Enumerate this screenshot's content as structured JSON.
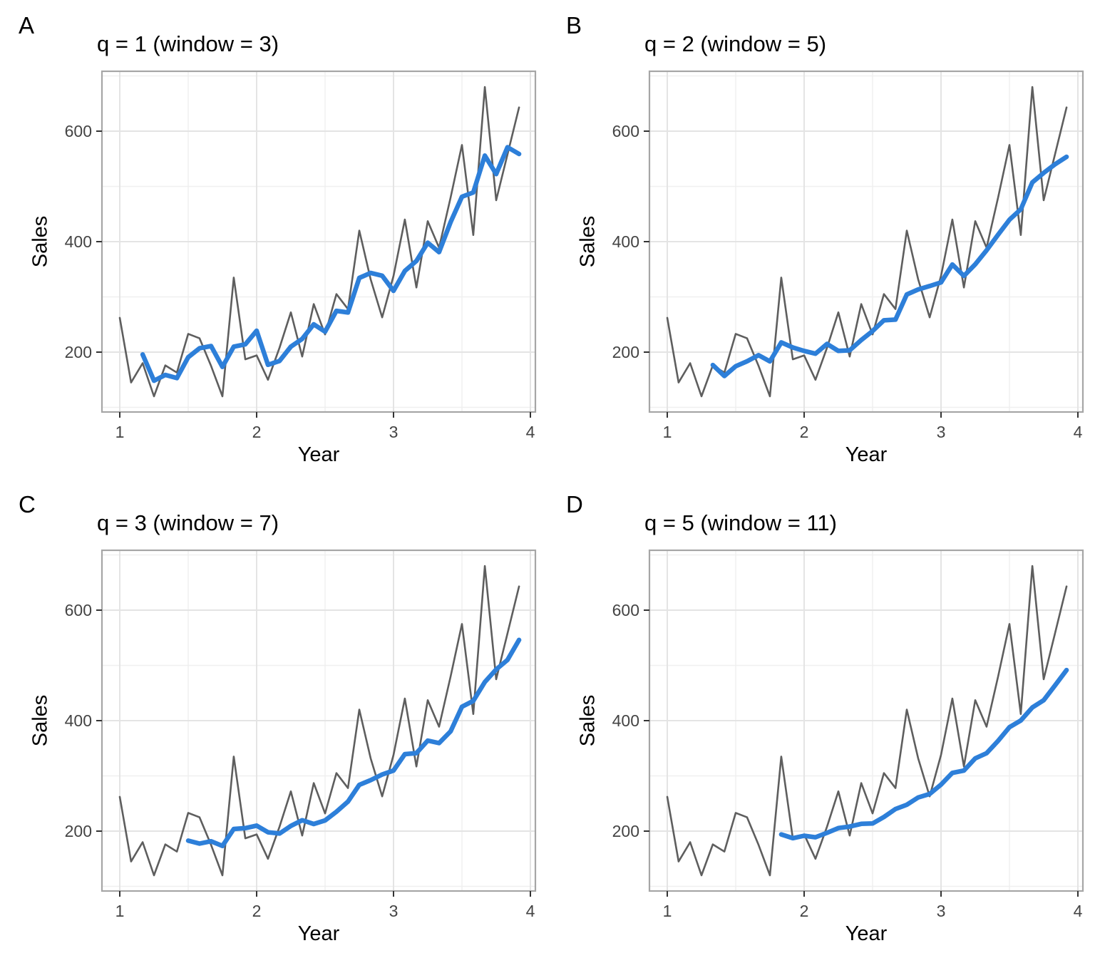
{
  "figure": {
    "background": "#ffffff",
    "raw_series_color": "#5e5e5e",
    "ma_series_color": "#2d7fd9",
    "grid_major_color": "#e4e4e4",
    "grid_minor_color": "#f0f0f0",
    "panel_border_color": "#a6a6a6",
    "tick_label_color": "#444444"
  },
  "chart_data": [
    {
      "type": "line",
      "panel_label": "A",
      "title": "q = 1 (window = 3)",
      "q": 1,
      "window": 3,
      "xlabel": "Year",
      "ylabel": "Sales",
      "x_ticks": [
        1,
        2,
        3,
        4
      ],
      "x_minor_ticks": [
        1.5,
        2.5,
        3.5
      ],
      "y_ticks": [
        200,
        400,
        600
      ],
      "y_minor_ticks": [
        100,
        300,
        500,
        700
      ],
      "xlim": [
        0.87,
        4.03
      ],
      "ylim": [
        92,
        707
      ],
      "grid": true,
      "legend": "none",
      "series": [
        {
          "name": "sales",
          "color": "#5e5e5e",
          "width": 2.6,
          "x": [
            1,
            1.083,
            1.167,
            1.25,
            1.333,
            1.417,
            1.5,
            1.583,
            1.667,
            1.75,
            1.833,
            1.917,
            2,
            2.083,
            2.167,
            2.25,
            2.333,
            2.417,
            2.5,
            2.583,
            2.667,
            2.75,
            2.833,
            2.917,
            3,
            3.083,
            3.167,
            3.25,
            3.333,
            3.417,
            3.5,
            3.583,
            3.667,
            3.75,
            3.833,
            3.917
          ],
          "values": [
            262,
            145,
            180,
            120,
            176,
            163,
            233,
            225,
            175,
            120,
            335,
            187,
            194,
            150,
            208,
            272,
            192,
            287,
            232,
            305,
            278,
            420,
            332,
            263,
            338,
            440,
            317,
            437,
            389,
            480,
            575,
            412,
            680,
            475,
            558,
            643
          ]
        },
        {
          "name": "moving_average_window_3",
          "color": "#2d7fd9",
          "width": 6.5,
          "x": [
            1.167,
            1.25,
            1.333,
            1.417,
            1.5,
            1.583,
            1.667,
            1.75,
            1.833,
            1.917,
            2,
            2.083,
            2.167,
            2.25,
            2.333,
            2.417,
            2.5,
            2.583,
            2.667,
            2.75,
            2.833,
            2.917,
            3,
            3.083,
            3.167,
            3.25,
            3.333,
            3.417,
            3.5,
            3.583,
            3.667,
            3.75,
            3.833,
            3.917
          ],
          "values": [
            195.7,
            148.3,
            158.7,
            153,
            190.7,
            207,
            211,
            173.3,
            210,
            214,
            238.7,
            177,
            184,
            210,
            224,
            250.3,
            237,
            274.7,
            271.7,
            334.3,
            343.3,
            338.3,
            311,
            347,
            365,
            398,
            381,
            435.3,
            481.3,
            489,
            555.7,
            522.3,
            571,
            558.7
          ]
        }
      ]
    },
    {
      "type": "line",
      "panel_label": "B",
      "title": "q = 2 (window = 5)",
      "q": 2,
      "window": 5,
      "xlabel": "Year",
      "ylabel": "Sales",
      "x_ticks": [
        1,
        2,
        3,
        4
      ],
      "x_minor_ticks": [
        1.5,
        2.5,
        3.5
      ],
      "y_ticks": [
        200,
        400,
        600
      ],
      "y_minor_ticks": [
        100,
        300,
        500,
        700
      ],
      "xlim": [
        0.87,
        4.03
      ],
      "ylim": [
        92,
        707
      ],
      "grid": true,
      "legend": "none",
      "series": [
        {
          "name": "sales",
          "color": "#5e5e5e",
          "width": 2.6,
          "x": [
            1,
            1.083,
            1.167,
            1.25,
            1.333,
            1.417,
            1.5,
            1.583,
            1.667,
            1.75,
            1.833,
            1.917,
            2,
            2.083,
            2.167,
            2.25,
            2.333,
            2.417,
            2.5,
            2.583,
            2.667,
            2.75,
            2.833,
            2.917,
            3,
            3.083,
            3.167,
            3.25,
            3.333,
            3.417,
            3.5,
            3.583,
            3.667,
            3.75,
            3.833,
            3.917
          ],
          "values": [
            262,
            145,
            180,
            120,
            176,
            163,
            233,
            225,
            175,
            120,
            335,
            187,
            194,
            150,
            208,
            272,
            192,
            287,
            232,
            305,
            278,
            420,
            332,
            263,
            338,
            440,
            317,
            437,
            389,
            480,
            575,
            412,
            680,
            475,
            558,
            643
          ]
        },
        {
          "name": "moving_average_window_5",
          "color": "#2d7fd9",
          "width": 6.5,
          "x": [
            1.333,
            1.417,
            1.5,
            1.583,
            1.667,
            1.75,
            1.833,
            1.917,
            2,
            2.083,
            2.167,
            2.25,
            2.333,
            2.417,
            2.5,
            2.583,
            2.667,
            2.75,
            2.833,
            2.917,
            3,
            3.083,
            3.167,
            3.25,
            3.333,
            3.417,
            3.5,
            3.583,
            3.667,
            3.75,
            3.833,
            3.917
          ],
          "values": [
            176.6,
            156.8,
            174.4,
            183.4,
            194.4,
            183.2,
            217.6,
            208.4,
            202.2,
            197.2,
            214.8,
            202.2,
            203.2,
            221.8,
            238.2,
            257.6,
            258.8,
            304.4,
            313.4,
            319.6,
            326.2,
            358.6,
            338,
            359,
            384.2,
            412.6,
            439.6,
            458.6,
            507.2,
            524.4,
            540,
            553.6
          ]
        }
      ]
    },
    {
      "type": "line",
      "panel_label": "C",
      "title": "q = 3 (window = 7)",
      "q": 3,
      "window": 7,
      "xlabel": "Year",
      "ylabel": "Sales",
      "x_ticks": [
        1,
        2,
        3,
        4
      ],
      "x_minor_ticks": [
        1.5,
        2.5,
        3.5
      ],
      "y_ticks": [
        200,
        400,
        600
      ],
      "y_minor_ticks": [
        100,
        300,
        500,
        700
      ],
      "xlim": [
        0.87,
        4.03
      ],
      "ylim": [
        92,
        707
      ],
      "grid": true,
      "legend": "none",
      "series": [
        {
          "name": "sales",
          "color": "#5e5e5e",
          "width": 2.6,
          "x": [
            1,
            1.083,
            1.167,
            1.25,
            1.333,
            1.417,
            1.5,
            1.583,
            1.667,
            1.75,
            1.833,
            1.917,
            2,
            2.083,
            2.167,
            2.25,
            2.333,
            2.417,
            2.5,
            2.583,
            2.667,
            2.75,
            2.833,
            2.917,
            3,
            3.083,
            3.167,
            3.25,
            3.333,
            3.417,
            3.5,
            3.583,
            3.667,
            3.75,
            3.833,
            3.917
          ],
          "values": [
            262,
            145,
            180,
            120,
            176,
            163,
            233,
            225,
            175,
            120,
            335,
            187,
            194,
            150,
            208,
            272,
            192,
            287,
            232,
            305,
            278,
            420,
            332,
            263,
            338,
            440,
            317,
            437,
            389,
            480,
            575,
            412,
            680,
            475,
            558,
            643
          ]
        },
        {
          "name": "moving_average_window_7",
          "color": "#2d7fd9",
          "width": 6.5,
          "x": [
            1.5,
            1.583,
            1.667,
            1.75,
            1.833,
            1.917,
            2,
            2.083,
            2.167,
            2.25,
            2.333,
            2.417,
            2.5,
            2.583,
            2.667,
            2.75,
            2.833,
            2.917,
            3,
            3.083,
            3.167,
            3.25,
            3.333,
            3.417,
            3.5,
            3.583,
            3.667,
            3.75,
            3.833,
            3.917
          ],
          "values": [
            182.7,
            177.4,
            181.7,
            173.1,
            203.9,
            205.4,
            209.9,
            198,
            195.6,
            209.4,
            219.7,
            212.9,
            219.3,
            235.1,
            253.4,
            283.7,
            292.3,
            302.4,
            309.7,
            339.4,
            341.1,
            363.9,
            359.4,
            380.6,
            425.1,
            435.7,
            470,
            492.6,
            509.9,
            546.1
          ]
        }
      ]
    },
    {
      "type": "line",
      "panel_label": "D",
      "title": "q = 5 (window = 11)",
      "q": 5,
      "window": 11,
      "xlabel": "Year",
      "ylabel": "Sales",
      "x_ticks": [
        1,
        2,
        3,
        4
      ],
      "x_minor_ticks": [
        1.5,
        2.5,
        3.5
      ],
      "y_ticks": [
        200,
        400,
        600
      ],
      "y_minor_ticks": [
        100,
        300,
        500,
        700
      ],
      "xlim": [
        0.87,
        4.03
      ],
      "ylim": [
        92,
        707
      ],
      "grid": true,
      "legend": "none",
      "series": [
        {
          "name": "sales",
          "color": "#5e5e5e",
          "width": 2.6,
          "x": [
            1,
            1.083,
            1.167,
            1.25,
            1.333,
            1.417,
            1.5,
            1.583,
            1.667,
            1.75,
            1.833,
            1.917,
            2,
            2.083,
            2.167,
            2.25,
            2.333,
            2.417,
            2.5,
            2.583,
            2.667,
            2.75,
            2.833,
            2.917,
            3,
            3.083,
            3.167,
            3.25,
            3.333,
            3.417,
            3.5,
            3.583,
            3.667,
            3.75,
            3.833,
            3.917
          ],
          "values": [
            262,
            145,
            180,
            120,
            176,
            163,
            233,
            225,
            175,
            120,
            335,
            187,
            194,
            150,
            208,
            272,
            192,
            287,
            232,
            305,
            278,
            420,
            332,
            263,
            338,
            440,
            317,
            437,
            389,
            480,
            575,
            412,
            680,
            475,
            558,
            643
          ]
        },
        {
          "name": "moving_average_window_11",
          "color": "#2d7fd9",
          "width": 6.5,
          "x": [
            1.833,
            1.917,
            2,
            2.083,
            2.167,
            2.25,
            2.333,
            2.417,
            2.5,
            2.583,
            2.667,
            2.75,
            2.833,
            2.917,
            3,
            3.083,
            3.167,
            3.25,
            3.333,
            3.417,
            3.5,
            3.583,
            3.667,
            3.75,
            3.833,
            3.917
          ],
          "values": [
            194,
            187.2,
            191.6,
            188.9,
            196.9,
            205.6,
            208.3,
            213.2,
            213.8,
            225.6,
            240,
            247.7,
            260.9,
            267.2,
            284.3,
            305.4,
            309.5,
            331.7,
            341,
            363.5,
            388.1,
            400.3,
            423.9,
            436.9,
            463.7,
            491.5
          ]
        }
      ]
    }
  ]
}
